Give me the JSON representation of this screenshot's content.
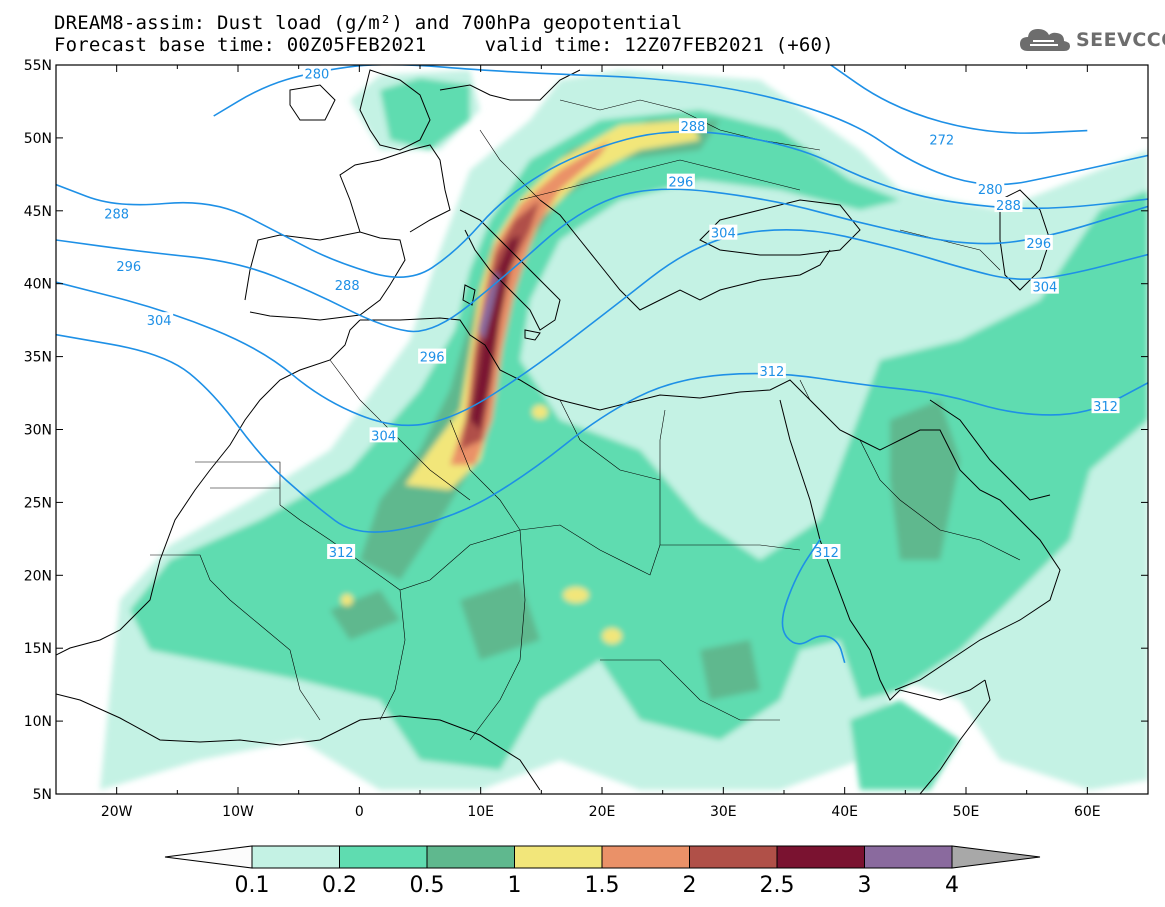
{
  "title": {
    "line1": "DREAM8-assim: Dust load (g/m²) and 700hPa geopotential",
    "line2": "Forecast base time: 00Z05FEB2021     valid time: 12Z07FEB2021 (+60)"
  },
  "logo": {
    "text": "SEEVCCC",
    "icon": "cloud-icon"
  },
  "map": {
    "lon_range": [
      -25,
      65
    ],
    "lat_range": [
      5,
      55
    ],
    "lon_ticks": [
      {
        "v": -20,
        "label": "20W"
      },
      {
        "v": -10,
        "label": "10W"
      },
      {
        "v": 0,
        "label": "0"
      },
      {
        "v": 10,
        "label": "10E"
      },
      {
        "v": 20,
        "label": "20E"
      },
      {
        "v": 30,
        "label": "30E"
      },
      {
        "v": 40,
        "label": "40E"
      },
      {
        "v": 50,
        "label": "50E"
      },
      {
        "v": 60,
        "label": "60E"
      }
    ],
    "lat_ticks": [
      {
        "v": 55,
        "label": "55N"
      },
      {
        "v": 50,
        "label": "50N"
      },
      {
        "v": 45,
        "label": "45N"
      },
      {
        "v": 40,
        "label": "40N"
      },
      {
        "v": 35,
        "label": "35N"
      },
      {
        "v": 30,
        "label": "30N"
      },
      {
        "v": 25,
        "label": "25N"
      },
      {
        "v": 20,
        "label": "20N"
      },
      {
        "v": 15,
        "label": "15N"
      },
      {
        "v": 10,
        "label": "10N"
      },
      {
        "v": 5,
        "label": "5N"
      }
    ],
    "contour_color": "#1e90e6",
    "contours": [
      {
        "label": "272",
        "points": [
          [
            38,
            55.5
          ],
          [
            44,
            52
          ],
          [
            52,
            50.2
          ],
          [
            60,
            50.5
          ]
        ],
        "labels": [
          [
            48,
            49.9
          ]
        ]
      },
      {
        "label": "280",
        "points": [
          [
            -12,
            51.5
          ],
          [
            -8,
            53.5
          ],
          [
            -4,
            54.5
          ],
          [
            2,
            55.2
          ],
          [
            12,
            54.5
          ],
          [
            28,
            54
          ],
          [
            40,
            51.5
          ],
          [
            46,
            48
          ],
          [
            52,
            46.5
          ],
          [
            58,
            47.5
          ],
          [
            65,
            48.8
          ]
        ],
        "labels": [
          [
            -3.5,
            54.4
          ],
          [
            52,
            46.5
          ]
        ]
      },
      {
        "label": "288",
        "points": [
          [
            -25,
            46.8
          ],
          [
            -20,
            45.2
          ],
          [
            -12,
            45.8
          ],
          [
            -6,
            43.2
          ],
          [
            -2,
            41.5
          ],
          [
            4,
            40
          ],
          [
            8,
            42.2
          ],
          [
            12,
            46
          ],
          [
            18,
            49
          ],
          [
            26,
            50.8
          ],
          [
            36,
            49.5
          ],
          [
            42,
            47
          ],
          [
            48,
            45.6
          ],
          [
            56,
            45
          ],
          [
            65,
            45.8
          ]
        ],
        "labels": [
          [
            -20,
            44.8
          ],
          [
            -1,
            39.9
          ],
          [
            27.5,
            50.8
          ],
          [
            53.5,
            45.4
          ]
        ]
      },
      {
        "label": "296",
        "points": [
          [
            -25,
            43
          ],
          [
            -18,
            42.2
          ],
          [
            -10,
            41.5
          ],
          [
            -4,
            39.5
          ],
          [
            2,
            37
          ],
          [
            6,
            36.5
          ],
          [
            12,
            40.5
          ],
          [
            18,
            45
          ],
          [
            24,
            46.8
          ],
          [
            34,
            45.8
          ],
          [
            42,
            44
          ],
          [
            50,
            42.6
          ],
          [
            56,
            43
          ],
          [
            65,
            45.3
          ]
        ],
        "labels": [
          [
            -19,
            41.2
          ],
          [
            6,
            35
          ],
          [
            26.5,
            47
          ],
          [
            56,
            42.8
          ]
        ]
      },
      {
        "label": "304",
        "points": [
          [
            -25,
            40.1
          ],
          [
            -16,
            38.2
          ],
          [
            -8,
            35.5
          ],
          [
            -3,
            32
          ],
          [
            3,
            30
          ],
          [
            8,
            30.8
          ],
          [
            14,
            34
          ],
          [
            20,
            37.8
          ],
          [
            28,
            43
          ],
          [
            36,
            44
          ],
          [
            44,
            42.5
          ],
          [
            50,
            41
          ],
          [
            54,
            40.2
          ],
          [
            58,
            40.5
          ],
          [
            65,
            42
          ]
        ],
        "labels": [
          [
            -16.5,
            37.5
          ],
          [
            2,
            29.6
          ],
          [
            30,
            43.5
          ],
          [
            56.5,
            39.8
          ]
        ]
      },
      {
        "label": "312",
        "points": [
          [
            -25,
            36.5
          ],
          [
            -16,
            35.2
          ],
          [
            -12,
            32.5
          ],
          [
            -8,
            28
          ],
          [
            -4,
            25
          ],
          [
            0,
            22.5
          ],
          [
            8,
            24
          ],
          [
            14,
            27
          ],
          [
            20,
            31
          ],
          [
            26,
            33.5
          ],
          [
            34,
            34
          ],
          [
            42,
            33
          ],
          [
            48,
            32.5
          ],
          [
            54,
            31
          ],
          [
            60,
            31
          ],
          [
            65,
            33.2
          ]
        ],
        "labels": [
          [
            -1.5,
            21.6
          ],
          [
            34,
            34
          ],
          [
            61.5,
            31.6
          ],
          [
            38.5,
            21.6
          ]
        ]
      },
      {
        "label": "",
        "points": [
          [
            38,
            22.5
          ],
          [
            36,
            20
          ],
          [
            34.5,
            16.5
          ],
          [
            36,
            15
          ],
          [
            38,
            16
          ],
          [
            39.5,
            15.5
          ],
          [
            40,
            14
          ]
        ],
        "labels": []
      }
    ],
    "colorbar": {
      "levels": [
        "0.1",
        "0.2",
        "0.5",
        "1",
        "1.5",
        "2",
        "2.5",
        "3",
        "4"
      ],
      "colors": [
        "#fcfcfc",
        "#c4f2e4",
        "#5fdcb0",
        "#5fb88e",
        "#f2e67a",
        "#ea9168",
        "#b05048",
        "#7a1230",
        "#8a6a9e",
        "#a8a8a8"
      ]
    }
  }
}
